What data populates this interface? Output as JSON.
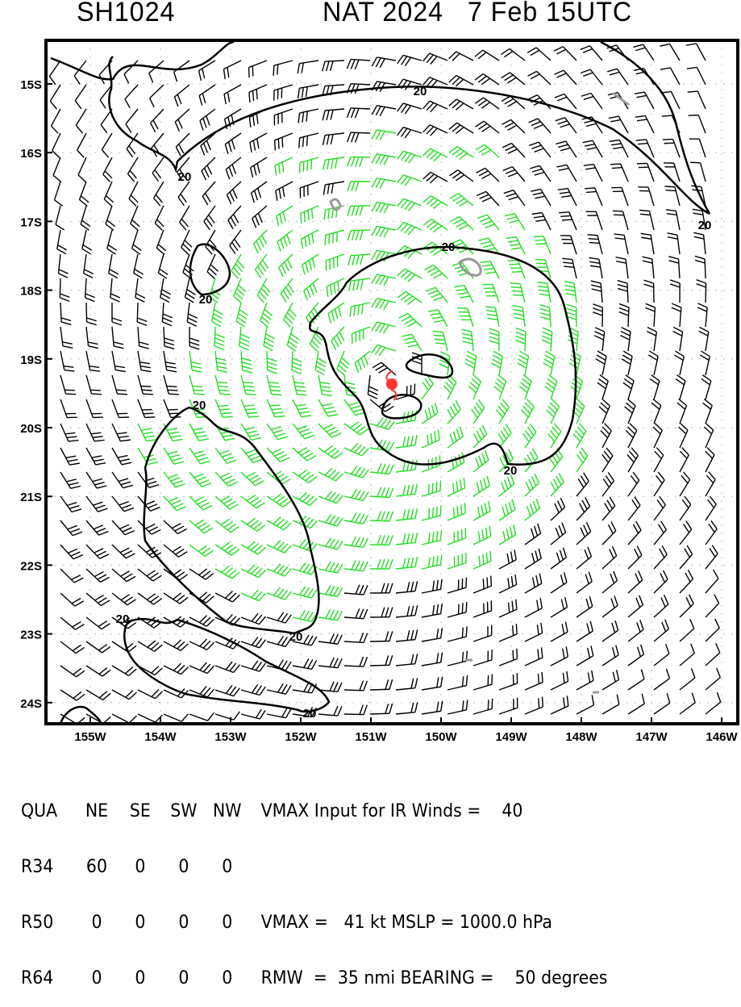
{
  "header": {
    "storm_id": "SH1024",
    "product": "NAT 2024   7 Feb 15UTC"
  },
  "map": {
    "lat_labels": [
      "15S",
      "16S",
      "17S",
      "18S",
      "19S",
      "20S",
      "21S",
      "22S",
      "23S",
      "24S"
    ],
    "lon_labels": [
      "155W",
      "154W",
      "153W",
      "152W",
      "151W",
      "150W",
      "149W",
      "148W",
      "147W",
      "146W"
    ],
    "contour_label": "20",
    "storm_center": {
      "lon": -150.6,
      "lat": -19.4
    },
    "colors": {
      "weak_wind": "#000000",
      "gale_wind": "#22dd22",
      "strong_wind": "#e0a030",
      "storm_symbol": "#ff3333",
      "contour": "#000000",
      "cloud": "#999999"
    }
  },
  "table": {
    "headers": [
      "QUA",
      "NE",
      "SE",
      "SW",
      "NW"
    ],
    "rows": [
      {
        "label": "R34",
        "values": [
          "60",
          "0",
          "0",
          "0"
        ],
        "text": ""
      },
      {
        "label": "R50",
        "values": [
          "0",
          "0",
          "0",
          "0"
        ],
        "text": "VMAX =   41 kt MSLP = 1000.0 hPa"
      },
      {
        "label": "R64",
        "values": [
          "0",
          "0",
          "0",
          "0"
        ],
        "text": "RMW  =  35 nmi BEARING =    50 degrees"
      }
    ],
    "header_text": "VMAX Input for IR Winds =    40"
  }
}
